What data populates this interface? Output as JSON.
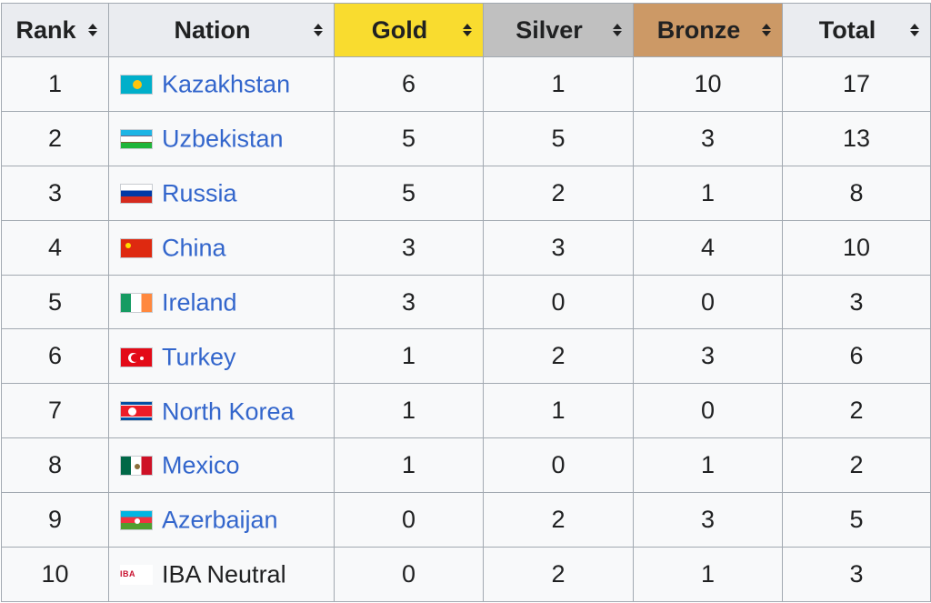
{
  "header": {
    "rank": "Rank",
    "nation": "Nation",
    "gold": "Gold",
    "silver": "Silver",
    "bronze": "Bronze",
    "total": "Total",
    "colors": {
      "gold": "#f9dc2f",
      "silver": "#c0c0c0",
      "bronze": "#cc9966"
    },
    "sort_icon": "sort-arrows-icon"
  },
  "link_color": "#3366cc",
  "rows": [
    {
      "rank": "1",
      "nation": "Kazakhstan",
      "gold": "6",
      "silver": "1",
      "bronze": "10",
      "total": "17",
      "flag": "kazakhstan-flag-icon",
      "link": true
    },
    {
      "rank": "2",
      "nation": "Uzbekistan",
      "gold": "5",
      "silver": "5",
      "bronze": "3",
      "total": "13",
      "flag": "uzbekistan-flag-icon",
      "link": true
    },
    {
      "rank": "3",
      "nation": "Russia",
      "gold": "5",
      "silver": "2",
      "bronze": "1",
      "total": "8",
      "flag": "russia-flag-icon",
      "link": true
    },
    {
      "rank": "4",
      "nation": "China",
      "gold": "3",
      "silver": "3",
      "bronze": "4",
      "total": "10",
      "flag": "china-flag-icon",
      "link": true
    },
    {
      "rank": "5",
      "nation": "Ireland",
      "gold": "3",
      "silver": "0",
      "bronze": "0",
      "total": "3",
      "flag": "ireland-flag-icon",
      "link": true
    },
    {
      "rank": "6",
      "nation": "Turkey",
      "gold": "1",
      "silver": "2",
      "bronze": "3",
      "total": "6",
      "flag": "turkey-flag-icon",
      "link": true
    },
    {
      "rank": "7",
      "nation": "North Korea",
      "gold": "1",
      "silver": "1",
      "bronze": "0",
      "total": "2",
      "flag": "north-korea-flag-icon",
      "link": true
    },
    {
      "rank": "8",
      "nation": "Mexico",
      "gold": "1",
      "silver": "0",
      "bronze": "1",
      "total": "2",
      "flag": "mexico-flag-icon",
      "link": true
    },
    {
      "rank": "9",
      "nation": "Azerbaijan",
      "gold": "0",
      "silver": "2",
      "bronze": "3",
      "total": "5",
      "flag": "azerbaijan-flag-icon",
      "link": true
    },
    {
      "rank": "10",
      "nation": "IBA Neutral",
      "gold": "0",
      "silver": "2",
      "bronze": "1",
      "total": "3",
      "flag": "iba-flag-icon",
      "link": false,
      "flag_text": "IBA"
    }
  ]
}
